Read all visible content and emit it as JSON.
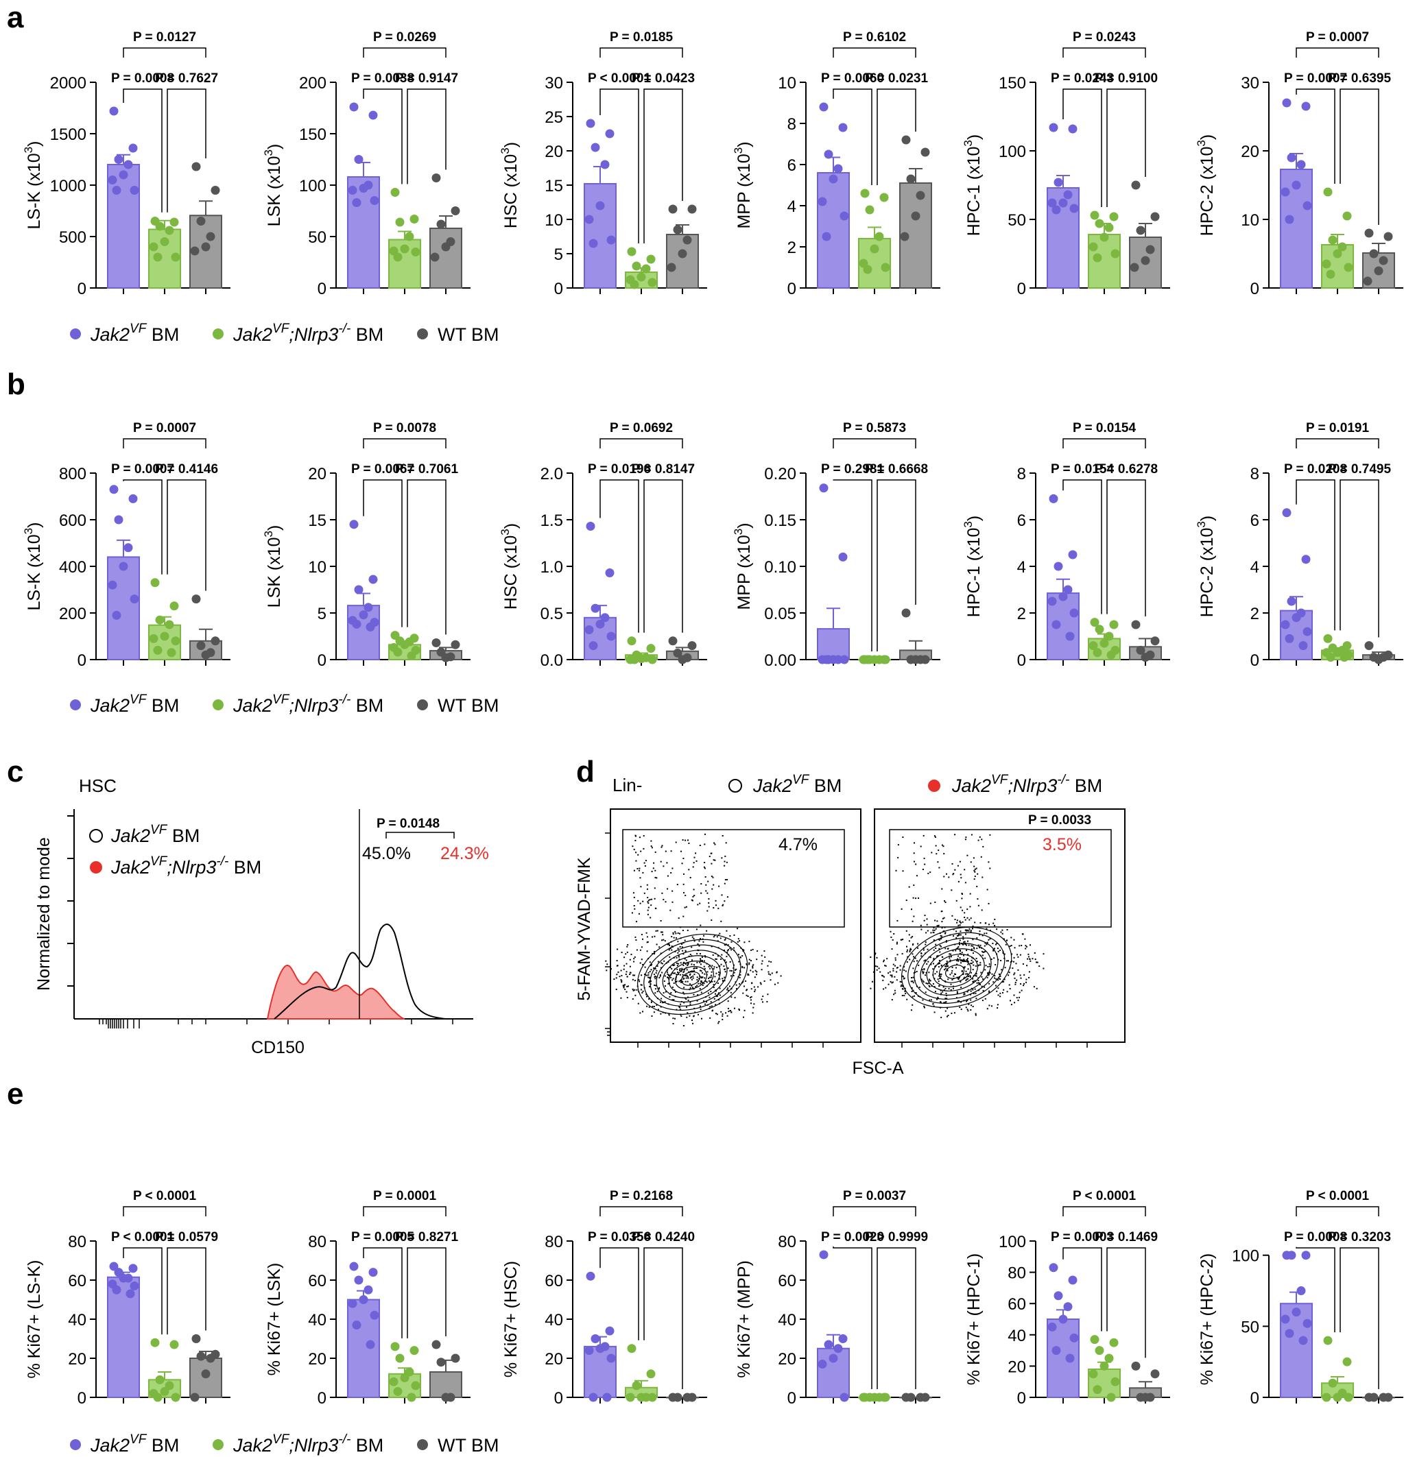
{
  "colors": {
    "jak2": "#9b8fe8",
    "jak2_dark": "#6f61d8",
    "nlrp3": "#a7d676",
    "nlrp3_dark": "#7cb83f",
    "wt": "#9d9d9d",
    "wt_dark": "#555555",
    "red": "#e8302a"
  },
  "groups": [
    "Jak2VF BM",
    "Jak2VF;Nlrp3-/- BM",
    "WT BM"
  ],
  "legend": {
    "jak2": [
      "Jak2",
      "VF",
      " BM"
    ],
    "nlrp3": [
      "Jak2",
      "VF",
      ";Nlrp3",
      "-/-",
      " BM"
    ],
    "wt": "WT BM"
  },
  "panel_labels": {
    "a": "a",
    "b": "b",
    "c": "c",
    "d": "d",
    "e": "e"
  },
  "chart_data": [
    {
      "panel": "a",
      "type": "bar",
      "ylabel": "LS-K  (x10",
      "ylabel_sup": "3",
      "ylim": [
        0,
        2000
      ],
      "ticks": [
        0,
        500,
        1000,
        1500,
        2000
      ],
      "means": [
        1200,
        570,
        705
      ],
      "sems": [
        95,
        85,
        140
      ],
      "points": [
        [
          1720,
          1360,
          1250,
          1200,
          1100,
          1050,
          950,
          950
        ],
        [
          650,
          640,
          600,
          560,
          450,
          400,
          300,
          300
        ],
        [
          1180,
          950,
          650,
          500,
          400,
          360
        ]
      ],
      "pvals": {
        "p12": "P = 0.0008",
        "p23": "P = 0.7627",
        "p13": "P = 0.0127"
      }
    },
    {
      "panel": "a",
      "type": "bar",
      "ylabel": "LSK  (x10",
      "ylabel_sup": "3",
      "ylim": [
        0,
        200
      ],
      "ticks": [
        0,
        50,
        100,
        150,
        200
      ],
      "means": [
        108,
        47,
        58
      ],
      "sems": [
        14,
        8,
        12
      ],
      "points": [
        [
          176,
          168,
          125,
          100,
          97,
          95,
          85,
          83
        ],
        [
          93,
          67,
          64,
          50,
          38,
          36,
          35,
          30
        ],
        [
          107,
          75,
          62,
          45,
          40,
          30
        ]
      ],
      "pvals": {
        "p12": "P = 0.0038",
        "p23": "P = 0.9147",
        "p13": "P = 0.0269"
      }
    },
    {
      "panel": "a",
      "type": "bar",
      "ylabel": "HSC  (x10",
      "ylabel_sup": "3",
      "ylim": [
        0,
        30
      ],
      "ticks": [
        0,
        5,
        10,
        15,
        20,
        25,
        30
      ],
      "means": [
        15.2,
        2.3,
        7.8
      ],
      "sems": [
        2.5,
        0.6,
        1.4
      ],
      "points": [
        [
          24,
          22.5,
          20.5,
          18,
          12,
          10,
          7,
          6.5
        ],
        [
          5.3,
          4.2,
          3.2,
          2.8,
          1.6,
          1.2,
          0.8,
          0.5
        ],
        [
          11.5,
          11.5,
          8.5,
          7,
          5,
          3
        ]
      ],
      "pvals": {
        "p12": "P < 0.0001",
        "p23": "P = 0.0423",
        "p13": "P = 0.0185"
      }
    },
    {
      "panel": "a",
      "type": "bar",
      "ylabel": "MPP  (x10",
      "ylabel_sup": "3",
      "ylim": [
        0,
        10
      ],
      "ticks": [
        0,
        2,
        4,
        6,
        8,
        10
      ],
      "means": [
        5.6,
        2.4,
        5.1
      ],
      "sems": [
        0.75,
        0.55,
        0.7
      ],
      "points": [
        [
          8.8,
          7.8,
          6.5,
          5.8,
          5.3,
          4.2,
          3.5,
          2.5
        ],
        [
          4.6,
          4.4,
          3.8,
          2.5,
          1.9,
          1.2,
          1.0,
          0.9
        ],
        [
          7.2,
          6.6,
          5.3,
          4.5,
          3.5,
          2.5
        ]
      ],
      "pvals": {
        "p12": "P = 0.0060",
        "p23": "P = 0.0231",
        "p13": "P = 0.6102"
      }
    },
    {
      "panel": "a",
      "type": "bar",
      "ylabel": "HPC-1  (x10",
      "ylabel_sup": "3",
      "ylim": [
        0,
        150
      ],
      "ticks": [
        0,
        50,
        100,
        150
      ],
      "means": [
        73,
        39,
        37
      ],
      "sems": [
        9,
        8,
        10
      ],
      "points": [
        [
          117,
          116,
          77,
          68,
          62,
          62,
          58,
          57
        ],
        [
          53,
          52,
          47,
          44,
          37,
          30,
          25,
          22
        ],
        [
          75,
          52,
          42,
          28,
          20,
          15
        ]
      ],
      "pvals": {
        "p12": "P = 0.0243",
        "p23": "P = 0.9100",
        "p13": "P = 0.0243"
      }
    },
    {
      "panel": "a",
      "type": "bar",
      "ylabel": "HPC-2  (x10",
      "ylabel_sup": "3",
      "ylim": [
        0,
        30
      ],
      "ticks": [
        0,
        10,
        20,
        30
      ],
      "means": [
        17.3,
        6.3,
        5.1
      ],
      "sems": [
        2.3,
        1.5,
        1.4
      ],
      "points": [
        [
          27,
          26.5,
          19,
          18,
          15,
          14,
          12,
          10
        ],
        [
          14,
          10.5,
          7,
          6,
          5,
          3.5,
          3,
          2
        ],
        [
          8,
          7.5,
          5,
          4,
          2.5,
          1
        ]
      ],
      "pvals": {
        "p12": "P = 0.0007",
        "p23": "P = 0.6395",
        "p13": "P = 0.0007"
      }
    },
    {
      "panel": "b",
      "type": "bar",
      "ylabel": "LS-K  (x10",
      "ylabel_sup": "3",
      "ylim": [
        0,
        800
      ],
      "ticks": [
        0,
        200,
        400,
        600,
        800
      ],
      "means": [
        440,
        148,
        80
      ],
      "sems": [
        72,
        35,
        50
      ],
      "points": [
        [
          730,
          690,
          600,
          480,
          400,
          320,
          260,
          190
        ],
        [
          330,
          230,
          170,
          150,
          100,
          90,
          80,
          40,
          30
        ],
        [
          260,
          80,
          60,
          30,
          20
        ]
      ],
      "pvals": {
        "p12": "P = 0.0007",
        "p23": "P = 0.4146",
        "p13": "P = 0.0007"
      }
    },
    {
      "panel": "b",
      "type": "bar",
      "ylabel": "LSK  (x10",
      "ylabel_sup": "3",
      "ylim": [
        0,
        20
      ],
      "ticks": [
        0,
        5,
        10,
        15,
        20
      ],
      "means": [
        5.8,
        1.6,
        0.95
      ],
      "sems": [
        1.3,
        0.3,
        0.35
      ],
      "points": [
        [
          14.5,
          8.6,
          7.5,
          5.6,
          4.8,
          4.2,
          4.0,
          3.8,
          3.5
        ],
        [
          2.6,
          2.3,
          2.0,
          1.9,
          1.6,
          1.3,
          1.0,
          0.8,
          0.4
        ],
        [
          1.8,
          1.6,
          0.8,
          0.3,
          0.2
        ]
      ],
      "pvals": {
        "p12": "P = 0.0067",
        "p23": "P = 0.7061",
        "p13": "P = 0.0078"
      }
    },
    {
      "panel": "b",
      "type": "bar",
      "ylabel": "HSC  (x10",
      "ylabel_sup": "3",
      "ylim": [
        0,
        2.0
      ],
      "ticks": [
        "0.0",
        "0.5",
        "1.0",
        "1.5",
        "2.0"
      ],
      "means": [
        0.45,
        0.05,
        0.09
      ],
      "sems": [
        0.13,
        0.02,
        0.04
      ],
      "points": [
        [
          1.43,
          0.93,
          0.55,
          0.45,
          0.38,
          0.32,
          0.25,
          0.15
        ],
        [
          0.2,
          0.12,
          0.05,
          0.02,
          0.01,
          0,
          0,
          0
        ],
        [
          0.2,
          0.15,
          0.07,
          0.02,
          0
        ]
      ],
      "pvals": {
        "p12": "P = 0.0196",
        "p23": "P = 0.8147",
        "p13": "P = 0.0692"
      }
    },
    {
      "panel": "b",
      "type": "bar",
      "ylabel": "MPP  (x10",
      "ylabel_sup": "3",
      "ylim": [
        0,
        0.2
      ],
      "ticks": [
        "0.00",
        "0.05",
        "0.10",
        "0.15",
        "0.20"
      ],
      "means": [
        0.033,
        0.0,
        0.01
      ],
      "sems": [
        0.022,
        0.0,
        0.01
      ],
      "points": [
        [
          0.184,
          0.11,
          0,
          0,
          0,
          0,
          0,
          0
        ],
        [
          0,
          0,
          0,
          0,
          0,
          0,
          0,
          0
        ],
        [
          0.05,
          0,
          0,
          0,
          0
        ]
      ],
      "pvals": {
        "p12": "P = 0.2981",
        "p23": "P = 0.6668",
        "p13": "P = 0.5873"
      }
    },
    {
      "panel": "b",
      "type": "bar",
      "ylabel": "HPC-1  (x10",
      "ylabel_sup": "3",
      "ylim": [
        0,
        8
      ],
      "ticks": [
        0,
        2,
        4,
        6,
        8
      ],
      "means": [
        2.85,
        0.9,
        0.55
      ],
      "sems": [
        0.6,
        0.2,
        0.35
      ],
      "points": [
        [
          6.9,
          4.5,
          4.0,
          3.0,
          2.7,
          2.5,
          2.0,
          1.5,
          1.0
        ],
        [
          1.6,
          1.5,
          1.3,
          1.0,
          0.7,
          0.6,
          0.4,
          0.3,
          0.2
        ],
        [
          1.5,
          0.8,
          0.4,
          0.2,
          0.1
        ]
      ],
      "pvals": {
        "p12": "P = 0.0154",
        "p23": "P = 0.6278",
        "p13": "P = 0.0154"
      }
    },
    {
      "panel": "b",
      "type": "bar",
      "ylabel": "HPC-2  (x10",
      "ylabel_sup": "3",
      "ylim": [
        0,
        8
      ],
      "ticks": [
        0,
        2,
        4,
        6,
        8
      ],
      "means": [
        2.1,
        0.4,
        0.2
      ],
      "sems": [
        0.6,
        0.1,
        0.12
      ],
      "points": [
        [
          6.3,
          4.3,
          2.5,
          2.0,
          1.8,
          1.5,
          1.2,
          0.9,
          0.6
        ],
        [
          0.9,
          0.6,
          0.5,
          0.4,
          0.3,
          0.3,
          0.2,
          0.1,
          0.1
        ],
        [
          0.6,
          0.2,
          0.1,
          0.1,
          0
        ]
      ],
      "pvals": {
        "p12": "P = 0.0208",
        "p23": "P = 0.7495",
        "p13": "P = 0.0191"
      }
    },
    {
      "panel": "e",
      "type": "bar",
      "ylabel": "% Ki67+ (LS-K)",
      "ylim": [
        0,
        80
      ],
      "ticks": [
        0,
        20,
        40,
        60,
        80
      ],
      "means": [
        61.5,
        9,
        20
      ],
      "sems": [
        2.5,
        4,
        3.5
      ],
      "points": [
        [
          67,
          66,
          64,
          61,
          61,
          58,
          57,
          55,
          53
        ],
        [
          28,
          27,
          9,
          6,
          3,
          2,
          0,
          0
        ],
        [
          30,
          22,
          21,
          20,
          12,
          0
        ]
      ],
      "pvals": {
        "p12": "P < 0.0001",
        "p23": "P = 0.0579",
        "p13": "P < 0.0001"
      }
    },
    {
      "panel": "e",
      "type": "bar",
      "ylabel": "% Ki67+ (LSK)",
      "ylim": [
        0,
        80
      ],
      "ticks": [
        0,
        20,
        40,
        60,
        80
      ],
      "means": [
        50,
        12,
        13
      ],
      "sems": [
        4.5,
        3,
        6
      ],
      "points": [
        [
          67,
          64,
          60,
          55,
          50,
          48,
          42,
          37,
          27
        ],
        [
          26,
          24,
          20,
          13,
          10,
          8,
          6,
          3,
          0
        ],
        [
          27,
          20,
          18,
          0,
          0
        ]
      ],
      "pvals": {
        "p12": "P = 0.0005",
        "p23": "P = 0.8271",
        "p13": "P = 0.0001"
      }
    },
    {
      "panel": "e",
      "type": "bar",
      "ylabel": "% Ki67+ (HSC)",
      "ylim": [
        0,
        80
      ],
      "ticks": [
        0,
        20,
        40,
        60,
        80
      ],
      "means": [
        26,
        5,
        0
      ],
      "sems": [
        5,
        3.5,
        0
      ],
      "points": [
        [
          62,
          34,
          30,
          26,
          25,
          24,
          20,
          0,
          0
        ],
        [
          25,
          12,
          6,
          0,
          0,
          0,
          0
        ],
        [
          0,
          0,
          0,
          0
        ]
      ],
      "pvals": {
        "p12": "P = 0.0356",
        "p23": "P = 0.4240",
        "p13": "P = 0.2168"
      }
    },
    {
      "panel": "e",
      "type": "bar",
      "ylabel": "% Ki67+ (MPP)",
      "ylim": [
        0,
        80
      ],
      "ticks": [
        0,
        20,
        40,
        60,
        80
      ],
      "means": [
        25,
        0,
        0
      ],
      "sems": [
        7,
        0,
        0
      ],
      "points": [
        [
          73,
          30,
          27,
          25,
          20,
          17,
          0
        ],
        [
          0,
          0,
          0,
          0,
          0,
          0,
          0
        ],
        [
          0,
          0,
          0,
          0
        ]
      ],
      "pvals": {
        "p12": "P = 0.0020",
        "p23": "P > 0.9999",
        "p13": "P = 0.0037"
      }
    },
    {
      "panel": "e",
      "type": "bar",
      "ylabel": "% Ki67+ (HPC-1)",
      "ylim": [
        0,
        100
      ],
      "ticks": [
        0,
        20,
        40,
        60,
        80,
        100
      ],
      "means": [
        50,
        18,
        6
      ],
      "sems": [
        6,
        4.5,
        4
      ],
      "points": [
        [
          83,
          75,
          65,
          58,
          50,
          45,
          38,
          30,
          25
        ],
        [
          37,
          35,
          30,
          25,
          20,
          15,
          10,
          5,
          0
        ],
        [
          20,
          15,
          0,
          0,
          0
        ]
      ],
      "pvals": {
        "p12": "P = 0.0003",
        "p23": "P = 0.1469",
        "p13": "P < 0.0001"
      }
    },
    {
      "panel": "e",
      "type": "bar",
      "ylabel": "% Ki67+ (HPC-2)",
      "ylim": [
        0,
        110
      ],
      "ticks": [
        0,
        50,
        100
      ],
      "means": [
        66,
        10,
        0
      ],
      "sems": [
        8,
        4.5,
        0
      ],
      "points": [
        [
          100,
          100,
          100,
          75,
          60,
          55,
          52,
          45,
          40
        ],
        [
          40,
          25,
          10,
          3,
          0,
          0,
          0
        ],
        [
          0,
          0,
          0,
          0
        ]
      ],
      "pvals": {
        "p12": "P = 0.0008",
        "p23": "P = 0.3203",
        "p13": "P < 0.0001"
      }
    }
  ],
  "panel_c": {
    "title": "HSC",
    "ylabel": "Normalized to mode",
    "xlabel": "CD150",
    "legend1": [
      "Jak2",
      "VF",
      " BM"
    ],
    "legend2": [
      "Jak2",
      "VF",
      ";Nlrp3",
      "-/-",
      " BM"
    ],
    "pct_black": "45.0%",
    "pct_red": "24.3%",
    "pval": "P = 0.0148"
  },
  "panel_d": {
    "gate_label": "Lin-",
    "ylabel": "5-FAM-YVAD-FMK",
    "xlabel": "FSC-A",
    "legend1": [
      "Jak2",
      "VF",
      " BM"
    ],
    "legend2": [
      "Jak2",
      "VF",
      ";Nlrp3",
      "-/-",
      " BM"
    ],
    "pct_left": "4.7%",
    "pct_right": "3.5%",
    "pval": "P = 0.0033"
  }
}
